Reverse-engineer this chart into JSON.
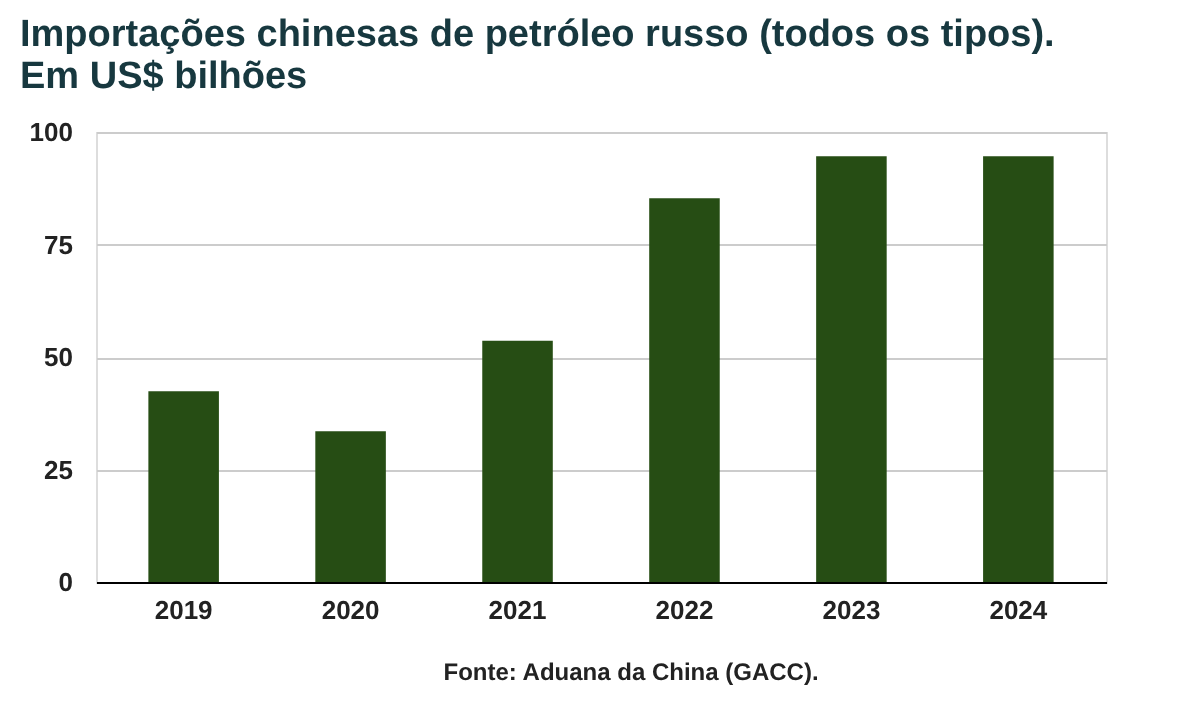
{
  "chart_data": {
    "type": "bar",
    "title": "Importações chinesas de petróleo russo (todos os tipos).\nEm US$ bilhões",
    "categories": [
      "2019",
      "2020",
      "2021",
      "2022",
      "2023",
      "2024"
    ],
    "values": [
      42.4,
      33.5,
      53.6,
      85.3,
      94.6,
      94.6
    ],
    "color": "#264d14",
    "ylim": [
      0,
      100
    ],
    "yticks": [
      0,
      25,
      50,
      75,
      100
    ],
    "grid": "y",
    "annotations": [
      "Fonte: Aduana da China (GACC)."
    ]
  }
}
